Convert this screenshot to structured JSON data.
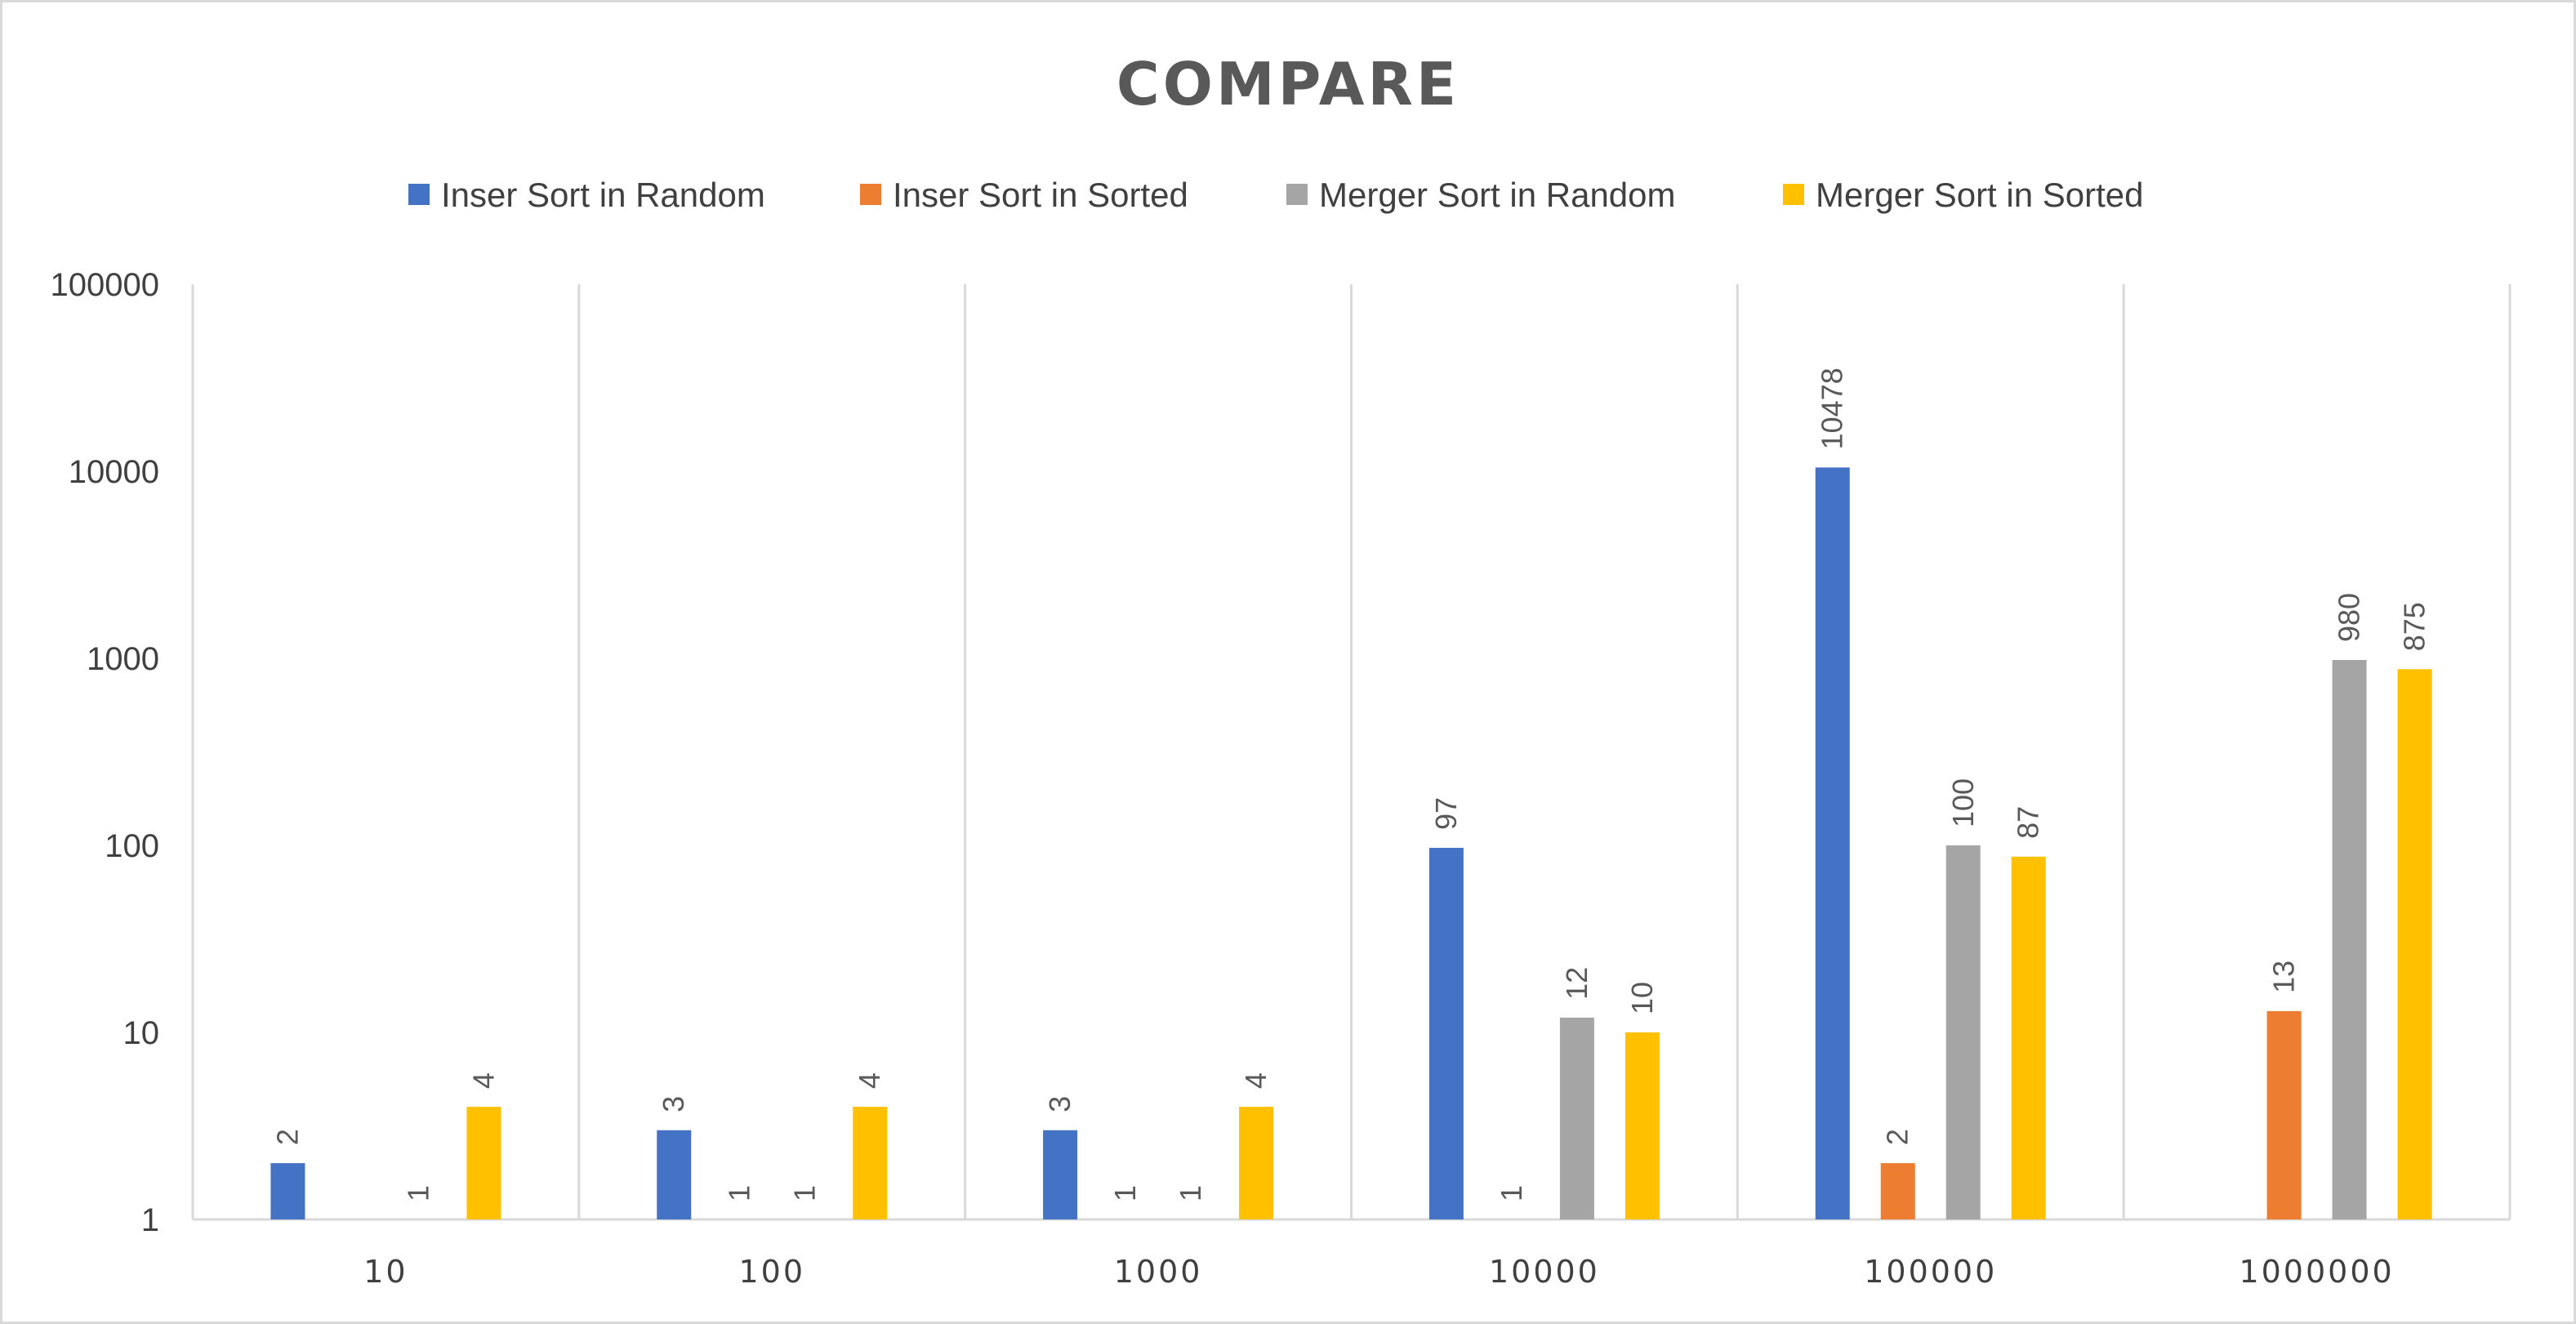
{
  "chart_data": {
    "type": "bar",
    "title": "COMPARE",
    "categories": [
      "10",
      "100",
      "1000",
      "10000",
      "100000",
      "1000000"
    ],
    "y_scale": "log",
    "ylim": [
      1,
      100000
    ],
    "y_ticks": [
      "1",
      "10",
      "100",
      "1000",
      "10000",
      "100000"
    ],
    "grid": "vertical category separators",
    "legend_position": "top",
    "series": [
      {
        "name": "Inser Sort in Random",
        "color": "#4472c4",
        "values": [
          2,
          3,
          3,
          97,
          10478,
          null
        ]
      },
      {
        "name": "Inser Sort in Sorted",
        "color": "#ed7d31",
        "values": [
          null,
          1,
          1,
          1,
          2,
          13
        ]
      },
      {
        "name": "Merger Sort in Random",
        "color": "#a5a5a5",
        "values": [
          1,
          1,
          1,
          12,
          100,
          980
        ]
      },
      {
        "name": "Merger Sort in Sorted",
        "color": "#ffc000",
        "values": [
          4,
          4,
          4,
          10,
          87,
          875
        ]
      }
    ]
  }
}
